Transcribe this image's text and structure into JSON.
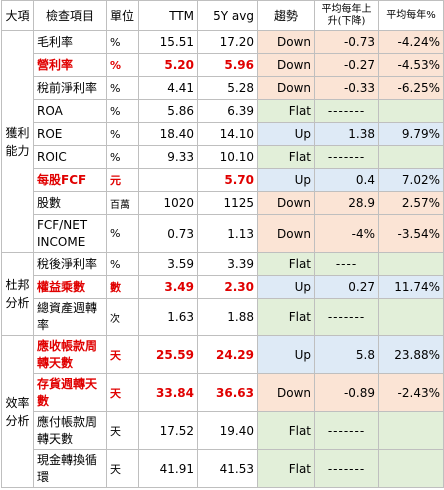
{
  "headers": [
    "大項",
    "檢查項目",
    "單位",
    "TTM",
    "5Y avg",
    "趨勢",
    "平均每年上升(下降)",
    "平均每年%"
  ],
  "categories": {
    "profit": "獲利能力",
    "dupont": "杜邦分析",
    "efficiency": "效率分析"
  },
  "rows": [
    {
      "name": "毛利率",
      "unit": "%",
      "ttm": "15.51",
      "avg": "17.20",
      "trend": "Down",
      "change": "-0.73",
      "pct": "-4.24%"
    },
    {
      "name": "營利率",
      "unit": "%",
      "ttm": "5.20",
      "avg": "5.96",
      "trend": "Down",
      "change": "-0.27",
      "pct": "-4.53%"
    },
    {
      "name": "稅前淨利率",
      "unit": "%",
      "ttm": "4.41",
      "avg": "5.28",
      "trend": "Down",
      "change": "-0.33",
      "pct": "-6.25%"
    },
    {
      "name": "ROA",
      "unit": "%",
      "ttm": "5.86",
      "avg": "6.39",
      "trend": "Flat",
      "change": "-------",
      "pct": ""
    },
    {
      "name": "ROE",
      "unit": "%",
      "ttm": "18.40",
      "avg": "14.10",
      "trend": "Up",
      "change": "1.38",
      "pct": "9.79%"
    },
    {
      "name": "ROIC",
      "unit": "%",
      "ttm": "9.33",
      "avg": "10.10",
      "trend": "Flat",
      "change": "-------",
      "pct": ""
    },
    {
      "name": "每股FCF",
      "unit": "元",
      "ttm": "",
      "avg": "5.70",
      "trend": "Up",
      "change": "0.4",
      "pct": "7.02%"
    },
    {
      "name": "股數",
      "unit": "百萬",
      "ttm": "1020",
      "avg": "1125",
      "trend": "Down",
      "change": "28.9",
      "pct": "2.57%"
    },
    {
      "name": "FCF/NET INCOME",
      "unit": "%",
      "ttm": "0.73",
      "avg": "1.13",
      "trend": "Down",
      "change": "-4%",
      "pct": "-3.54%"
    },
    {
      "name": "稅後淨利率",
      "unit": "%",
      "ttm": "3.59",
      "avg": "3.39",
      "trend": "Flat",
      "change": "----",
      "pct": ""
    },
    {
      "name": "權益乘數",
      "unit": "數",
      "ttm": "3.49",
      "avg": "2.30",
      "trend": "Up",
      "change": "0.27",
      "pct": "11.74%"
    },
    {
      "name": "總資產週轉率",
      "unit": "次",
      "ttm": "1.63",
      "avg": "1.88",
      "trend": "Flat",
      "change": "-------",
      "pct": ""
    },
    {
      "name": "應收帳款周轉天數",
      "unit": "天",
      "ttm": "25.59",
      "avg": "24.29",
      "trend": "Up",
      "change": "5.8",
      "pct": "23.88%"
    },
    {
      "name": "存貨週轉天數",
      "unit": "天",
      "ttm": "33.84",
      "avg": "36.63",
      "trend": "Down",
      "change": "-0.89",
      "pct": "-2.43%"
    },
    {
      "name": "應付帳款周轉天數",
      "unit": "天",
      "ttm": "17.52",
      "avg": "19.40",
      "trend": "Flat",
      "change": "-------",
      "pct": ""
    },
    {
      "name": "現金轉換循環",
      "unit": "天",
      "ttm": "41.91",
      "avg": "41.53",
      "trend": "Flat",
      "change": "-------",
      "pct": ""
    }
  ],
  "colors": {
    "down": "#fbe4d5",
    "up": "#deeaf6",
    "flat": "#e2efd9",
    "highlight_text": "#e00000",
    "border": "#bfbfbf"
  }
}
